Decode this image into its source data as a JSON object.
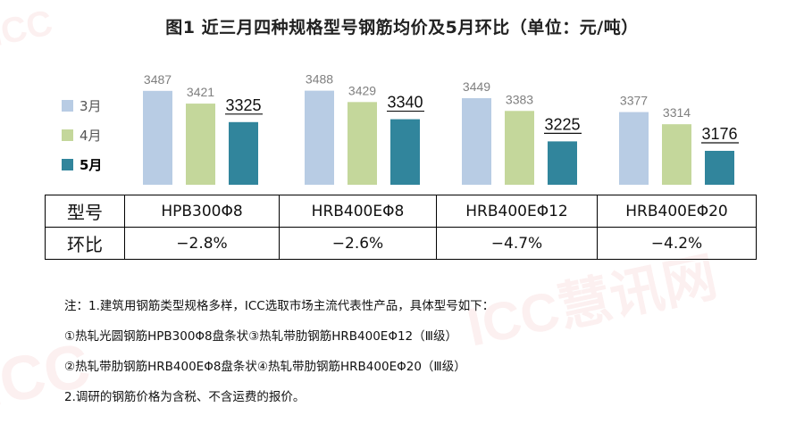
{
  "title": "图1 近三月四种规格型号钢筋均价及5月环比（单位：元/吨）",
  "watermark": "ICC慧讯网",
  "colors": {
    "3月": "#b8cce4",
    "4月": "#c4d79b",
    "5月": "#31859c"
  },
  "chart_data": {
    "type": "bar",
    "title": "图1 近三月四种规格型号钢筋均价及5月环比（单位：元/吨）",
    "categories": [
      "HPB300Φ8",
      "HRB400EΦ8",
      "HRB400EΦ12",
      "HRB400EΦ20"
    ],
    "series": [
      {
        "name": "3月",
        "values": [
          3487,
          3488,
          3449,
          3377
        ]
      },
      {
        "name": "4月",
        "values": [
          3421,
          3429,
          3383,
          3314
        ]
      },
      {
        "name": "5月",
        "values": [
          3325,
          3340,
          3225,
          3176
        ]
      }
    ],
    "ylim": [
      3000,
      3550
    ],
    "grid": false,
    "legend": "left"
  },
  "table": {
    "row1_header": "型号",
    "row2_header": "环比",
    "models": [
      "HPB300Φ8",
      "HRB400EΦ8",
      "HRB400EΦ12",
      "HRB400EΦ20"
    ],
    "changes": [
      "−2.8%",
      "−2.6%",
      "−4.7%",
      "−4.2%"
    ]
  },
  "notes": [
    "注：1.建筑用钢筋类型规格多样，ICC选取市场主流代表性产品，具体型号如下：",
    "①热轧光圆钢筋HPB300Φ8盘条状③热轧带肋钢筋HRB400EΦ12（Ⅲ级）",
    "②热轧带肋钢筋HRB400EΦ8盘条状④热轧带肋钢筋HRB400EΦ20（Ⅲ级）",
    "2.调研的钢筋价格为含税、不含运费的报价。"
  ]
}
